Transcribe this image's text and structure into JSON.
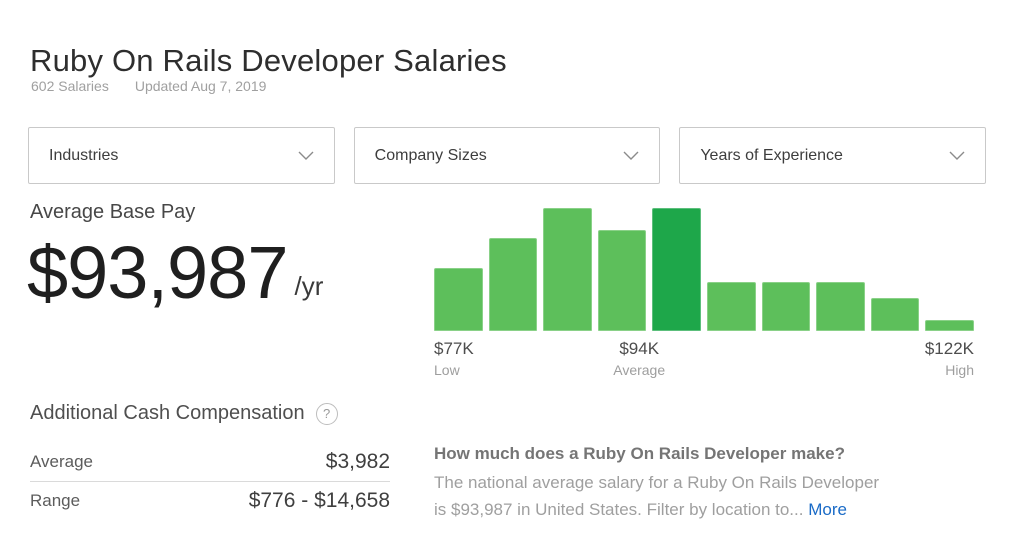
{
  "page": {
    "title": "Ruby On Rails Developer Salaries",
    "salaries_count": "602 Salaries",
    "updated": "Updated Aug 7, 2019"
  },
  "filters": [
    {
      "label": "Industries"
    },
    {
      "label": "Company Sizes"
    },
    {
      "label": "Years of Experience"
    }
  ],
  "base_pay": {
    "label": "Average Base Pay",
    "amount": "$93,987",
    "period": "/yr"
  },
  "chart_data": {
    "type": "bar",
    "title": "Base pay distribution histogram",
    "values_pct_of_max": [
      51,
      76,
      100,
      82,
      100,
      40,
      40,
      40,
      27,
      9
    ],
    "highlight_index": 4,
    "bar_color": "#5dbf5b",
    "highlight_color": "#1ea74a",
    "grid": false,
    "x_markers": [
      {
        "value": "$77K",
        "caption": "Low",
        "position": "left"
      },
      {
        "value": "$94K",
        "caption": "Average",
        "position": "center"
      },
      {
        "value": "$122K",
        "caption": "High",
        "position": "right"
      }
    ]
  },
  "additional_comp": {
    "title": "Additional Cash Compensation",
    "help_glyph": "?",
    "rows": [
      {
        "label": "Average",
        "value": "$3,982"
      },
      {
        "label": "Range",
        "value": "$776 - $14,658"
      }
    ]
  },
  "about": {
    "question": "How much does a Ruby On Rails Developer make?",
    "body_line1": "The national average salary for a Ruby On Rails Developer",
    "body_line2": "is $93,987 in United States. Filter by location to...",
    "more_label": "More"
  },
  "colors": {
    "bar_green": "#5dbf5b",
    "bar_highlight_green": "#1ea74a",
    "link_blue": "#1a6bc7"
  }
}
